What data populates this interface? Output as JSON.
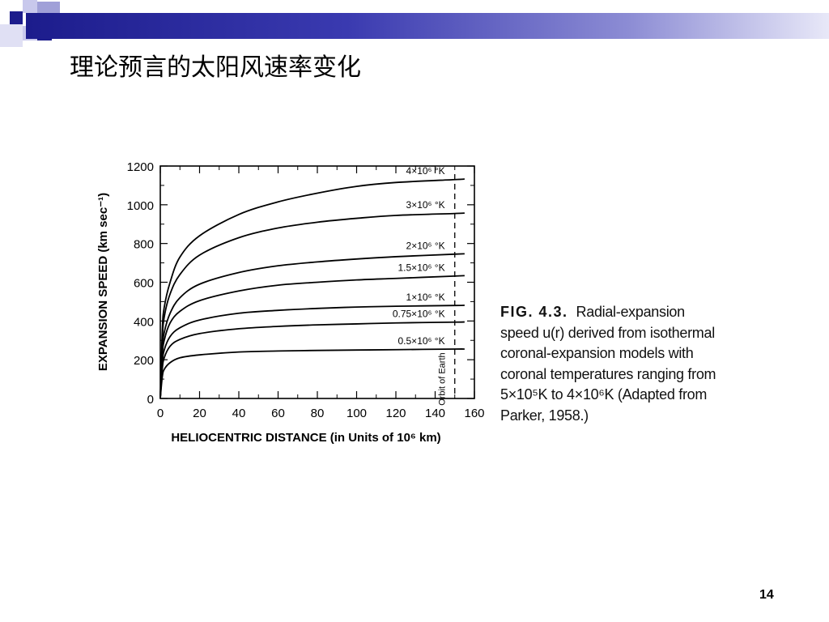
{
  "slide": {
    "title": "理论预言的太阳风速率变化",
    "page_number": "14"
  },
  "decoration": {
    "bar_color_start": "#1c1c8c",
    "square_color_dark": "#1c1c8c",
    "square_color_light": "#a0a0d8"
  },
  "caption": {
    "label": "FIG. 4.3.",
    "text": "Radial-expansion speed u(r) derived from isothermal coronal-expansion models with coronal temperatures ranging from 5×10⁵K to 4×10⁶K (Adapted from Parker, 1958.)"
  },
  "chart_data": {
    "type": "line",
    "xlabel": "HELIOCENTRIC DISTANCE (in Units of 10⁶ km)",
    "ylabel": "EXPANSION SPEED (km sec⁻¹)",
    "xlim": [
      0,
      160
    ],
    "ylim": [
      0,
      1200
    ],
    "xticks": [
      0,
      20,
      40,
      60,
      80,
      100,
      120,
      140,
      160
    ],
    "yticks": [
      0,
      200,
      400,
      600,
      800,
      1000,
      1200
    ],
    "x_tick_labels": [
      "0",
      "20",
      "40",
      "60",
      "80",
      "100",
      "120",
      "140",
      "160"
    ],
    "y_tick_labels": [
      "0",
      "200",
      "400",
      "600",
      "800",
      "1000",
      "1200"
    ],
    "annotation": {
      "text": "Orbit of Earth",
      "x": 150
    },
    "series": [
      {
        "name": "4×10⁶ °K",
        "x": [
          0,
          1,
          2,
          5,
          10,
          20,
          40,
          60,
          80,
          100,
          120,
          150,
          155
        ],
        "y": [
          0,
          350,
          470,
          600,
          730,
          840,
          950,
          1015,
          1060,
          1095,
          1115,
          1130,
          1133
        ]
      },
      {
        "name": "3×10⁶ °K",
        "x": [
          0,
          1,
          2,
          5,
          10,
          20,
          40,
          60,
          80,
          100,
          120,
          150,
          155
        ],
        "y": [
          0,
          300,
          420,
          540,
          640,
          740,
          830,
          880,
          910,
          930,
          945,
          955,
          957
        ]
      },
      {
        "name": "2×10⁶ °K",
        "x": [
          0,
          1,
          2,
          5,
          10,
          20,
          40,
          60,
          80,
          100,
          120,
          150,
          155
        ],
        "y": [
          0,
          250,
          340,
          440,
          520,
          590,
          650,
          685,
          705,
          720,
          732,
          745,
          747
        ]
      },
      {
        "name": "1.5×10⁶ °K",
        "x": [
          0,
          1,
          2,
          5,
          10,
          20,
          40,
          60,
          80,
          100,
          120,
          150,
          155
        ],
        "y": [
          0,
          220,
          300,
          390,
          450,
          505,
          555,
          585,
          600,
          612,
          620,
          632,
          634
        ]
      },
      {
        "name": "1×10⁶ °K",
        "x": [
          0,
          1,
          2,
          5,
          10,
          20,
          40,
          60,
          80,
          100,
          120,
          150,
          155
        ],
        "y": [
          0,
          180,
          250,
          320,
          365,
          405,
          440,
          455,
          465,
          472,
          476,
          480,
          481
        ]
      },
      {
        "name": "0.75×10⁶ °K",
        "x": [
          0,
          1,
          2,
          5,
          10,
          20,
          40,
          60,
          80,
          100,
          120,
          150,
          155
        ],
        "y": [
          0,
          150,
          210,
          270,
          305,
          335,
          360,
          372,
          380,
          385,
          390,
          394,
          395
        ]
      },
      {
        "name": "0.5×10⁶ °K",
        "x": [
          0,
          1,
          2,
          5,
          10,
          20,
          40,
          60,
          80,
          100,
          120,
          150,
          155
        ],
        "y": [
          0,
          110,
          150,
          185,
          210,
          225,
          240,
          245,
          248,
          250,
          252,
          255,
          255
        ]
      }
    ]
  }
}
